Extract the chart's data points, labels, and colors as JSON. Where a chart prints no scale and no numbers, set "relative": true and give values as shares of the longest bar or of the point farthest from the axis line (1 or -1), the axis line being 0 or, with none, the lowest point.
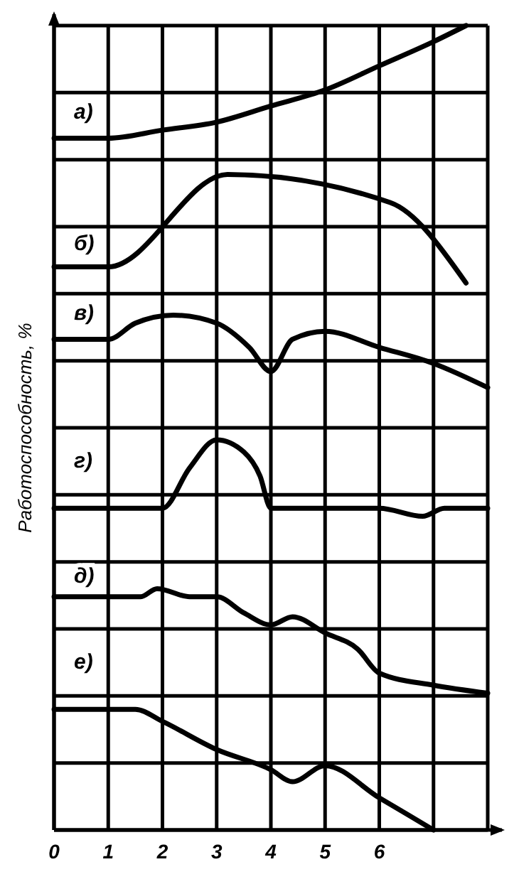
{
  "chart_data": {
    "type": "line",
    "ylabel": "Работоспособность, %",
    "relative": true,
    "grid": true,
    "xlim": [
      0,
      8
    ],
    "xticks": [
      0,
      1,
      2,
      3,
      4,
      5,
      6,
      {
        "value": 7,
        "label": null
      }
    ],
    "series": [
      {
        "name": "а)",
        "color": "#000000",
        "x": [
          0,
          1,
          2,
          3,
          4,
          5,
          6,
          7,
          7.6
        ],
        "values": [
          0.86,
          0.86,
          0.87,
          0.88,
          0.9,
          0.92,
          0.95,
          0.98,
          1
        ]
      },
      {
        "name": "б)",
        "color": "#000000",
        "x": [
          0,
          1,
          3.2,
          6.2,
          7.6
        ],
        "values": [
          0.7,
          0.7,
          0.815,
          0.78,
          0.68
        ]
      },
      {
        "name": "в)",
        "color": "#000000",
        "x": [
          0,
          1,
          1.5,
          2.2,
          3,
          3.6,
          4,
          4.4,
          5,
          6,
          7,
          8
        ],
        "values": [
          0.61,
          0.61,
          0.63,
          0.64,
          0.63,
          0.6,
          0.57,
          0.61,
          0.62,
          0.6,
          0.58,
          0.55
        ]
      },
      {
        "name": "г)",
        "color": "#000000",
        "x": [
          0,
          2,
          2.5,
          3,
          3.5,
          3.8,
          4,
          5,
          6,
          6.8,
          7.2,
          8
        ],
        "values": [
          0.4,
          0.4,
          0.45,
          0.485,
          0.47,
          0.44,
          0.4,
          0.4,
          0.4,
          0.39,
          0.4,
          0.4
        ]
      },
      {
        "name": "д)",
        "color": "#000000",
        "x": [
          0,
          1.6,
          1.9,
          2.5,
          3,
          3.5,
          4,
          4.4,
          5,
          5.6,
          6,
          7,
          8
        ],
        "values": [
          0.29,
          0.29,
          0.3,
          0.29,
          0.29,
          0.27,
          0.255,
          0.265,
          0.245,
          0.225,
          0.195,
          0.18,
          0.17
        ]
      },
      {
        "name": "е)",
        "color": "#000000",
        "x": [
          0,
          1.5,
          2,
          3,
          4,
          4.4,
          5,
          6,
          7
        ],
        "values": [
          0.15,
          0.15,
          0.135,
          0.1,
          0.075,
          0.06,
          0.08,
          0.04,
          0.0
        ]
      }
    ]
  }
}
